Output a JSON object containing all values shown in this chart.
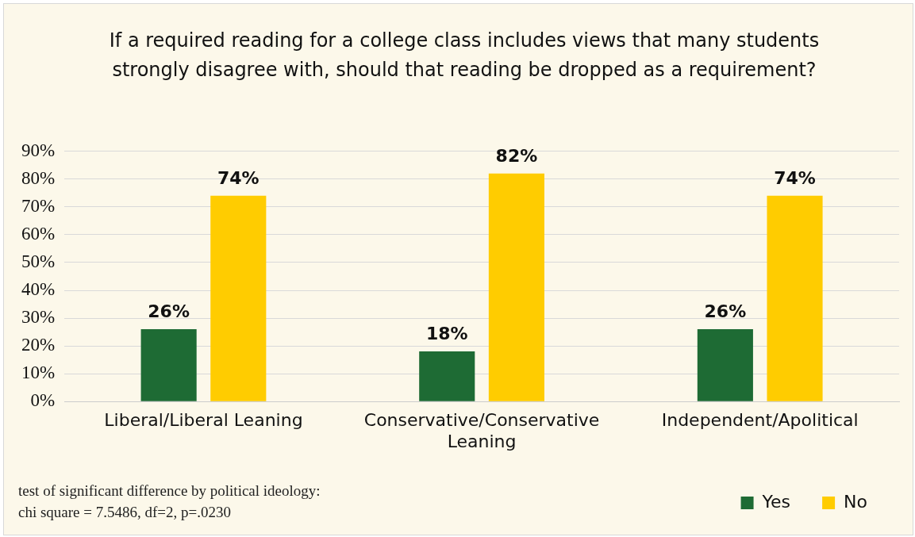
{
  "chart_data": {
    "type": "bar",
    "title": "If a required reading for a college class includes views that many students strongly disagree with, should that reading be dropped as a requirement?",
    "categories": [
      "Liberal/Liberal Leaning",
      "Conservative/Conservative Leaning",
      "Independent/Apolitical"
    ],
    "series": [
      {
        "name": "Yes",
        "color": "#1e6b34",
        "values": [
          26,
          18,
          26
        ],
        "value_labels": [
          "26%",
          "18%",
          "26%"
        ]
      },
      {
        "name": "No",
        "color": "#ffcc00",
        "values": [
          74,
          82,
          74
        ],
        "value_labels": [
          "74%",
          "82%",
          "74%"
        ]
      }
    ],
    "ylim": [
      0,
      90
    ],
    "yticks": [
      {
        "value": 0,
        "label": "0%"
      },
      {
        "value": 10,
        "label": "10%"
      },
      {
        "value": 20,
        "label": "20%"
      },
      {
        "value": 30,
        "label": "30%"
      },
      {
        "value": 40,
        "label": "40%"
      },
      {
        "value": 50,
        "label": "50%"
      },
      {
        "value": 60,
        "label": "60%"
      },
      {
        "value": 70,
        "label": "70%"
      },
      {
        "value": 80,
        "label": "80%"
      },
      {
        "value": 90,
        "label": "90%"
      }
    ],
    "grid": "y",
    "legend": "bottom right",
    "annotations": [
      "test of significant difference by political ideology:\nchi square = 7.5486, df=2, p=.0230"
    ]
  }
}
